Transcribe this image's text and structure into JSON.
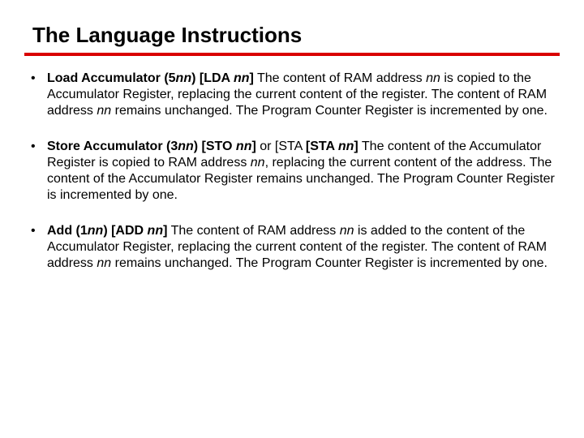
{
  "title": "The Language Instructions",
  "rule_color": "#d90000",
  "items": [
    {
      "name_prefix": "Load Accumulator (5",
      "name_var": "nn",
      "name_suffix": ") [LDA ",
      "name_var2": "nn",
      "name_close": "]",
      "body_parts": [
        " The content of RAM address ",
        "nn",
        " is copied to the Accumulator Register, replacing the current content of the register. The content of RAM address ",
        "nn",
        " remains unchanged. The Program Counter Register is incremented by one."
      ]
    },
    {
      "name_prefix": "Store Accumulator (3",
      "name_var": "nn",
      "name_suffix": ") [STO ",
      "name_var2": "nn",
      "name_close": "]",
      "alt_prefix": " or [STA ",
      "alt_var": "nn",
      "alt_close": "]",
      "body_parts": [
        " The content of the Accumulator Register is copied to RAM address ",
        "nn",
        ", replacing the current content of the address. The content of the Accumulator Register remains unchanged. The Program Counter Register is incremented by one."
      ]
    },
    {
      "name_prefix": "Add (1",
      "name_var": "nn",
      "name_suffix": ") [ADD ",
      "name_var2": "nn",
      "name_close": "]",
      "body_parts": [
        " The content of RAM address ",
        "nn",
        " is added to the content of  the Accumulator Register, replacing the current content of the register. The content of RAM address ",
        "nn",
        " remains unchanged. The Program Counter Register is incremented by one."
      ]
    }
  ]
}
